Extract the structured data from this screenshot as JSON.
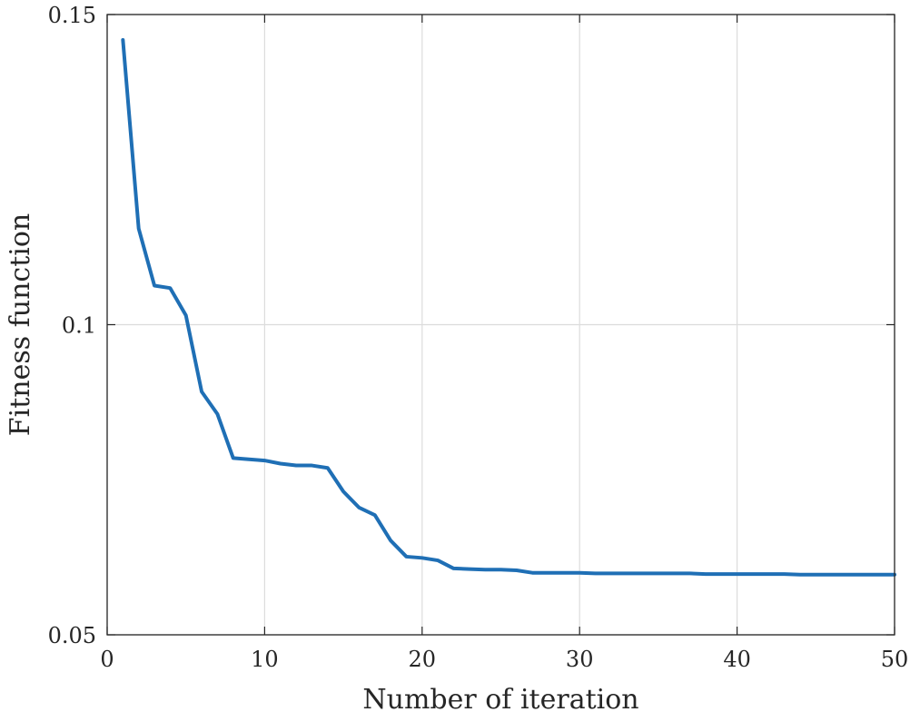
{
  "chart_data": {
    "type": "line",
    "title": "",
    "xlabel": "Number of iteration",
    "ylabel": "Fitness function",
    "xlim": [
      0,
      50
    ],
    "ylim": [
      0.05,
      0.15
    ],
    "xticks": [
      "0",
      "10",
      "20",
      "30",
      "40",
      "50"
    ],
    "yticks": [
      "0.05",
      "0.1",
      "0.15"
    ],
    "grid": true,
    "legend": "none",
    "series": [
      {
        "color": "#1f6fb5",
        "x": [
          1,
          2,
          3,
          4,
          5,
          6,
          7,
          8,
          9,
          10,
          11,
          12,
          13,
          14,
          15,
          16,
          17,
          18,
          19,
          20,
          21,
          22,
          23,
          24,
          25,
          26,
          27,
          28,
          29,
          30,
          31,
          32,
          33,
          34,
          35,
          36,
          37,
          38,
          39,
          40,
          41,
          42,
          43,
          44,
          45,
          46,
          47,
          48,
          49,
          50
        ],
        "y": [
          0.1459,
          0.1155,
          0.1063,
          0.1059,
          0.1015,
          0.0892,
          0.0856,
          0.0785,
          0.0783,
          0.0781,
          0.0776,
          0.0773,
          0.0773,
          0.0769,
          0.0731,
          0.0705,
          0.0693,
          0.0652,
          0.0626,
          0.0624,
          0.062,
          0.0607,
          0.0606,
          0.0605,
          0.0605,
          0.0604,
          0.06,
          0.06,
          0.06,
          0.06,
          0.0599,
          0.0599,
          0.0599,
          0.0599,
          0.0599,
          0.0599,
          0.0599,
          0.0598,
          0.0598,
          0.0598,
          0.0598,
          0.0598,
          0.0598,
          0.0597,
          0.0597,
          0.0597,
          0.0597,
          0.0597,
          0.0597,
          0.0597
        ]
      }
    ]
  }
}
